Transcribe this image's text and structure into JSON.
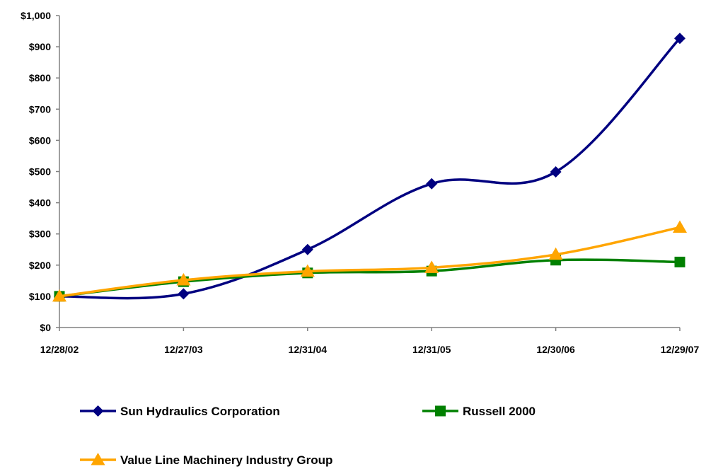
{
  "chart_data": {
    "type": "line",
    "title": "",
    "xlabel": "",
    "ylabel": "",
    "categories": [
      "12/28/02",
      "12/27/03",
      "12/31/04",
      "12/31/05",
      "12/30/06",
      "12/29/07"
    ],
    "ylim": [
      0,
      1000
    ],
    "yticks": [
      0,
      100,
      200,
      300,
      400,
      500,
      600,
      700,
      800,
      900,
      1000
    ],
    "ytick_labels": [
      "$0",
      "$100",
      "$200",
      "$300",
      "$400",
      "$500",
      "$600",
      "$700",
      "$800",
      "$900",
      "$1,000"
    ],
    "grid": false,
    "legend_position": "bottom",
    "series": [
      {
        "name": "Sun Hydraulics Corporation",
        "values": [
          100,
          108,
          250,
          461,
          499,
          927
        ],
        "color": "#000080",
        "marker": "diamond",
        "smooth": true
      },
      {
        "name": "Russell 2000",
        "values": [
          100,
          147,
          175,
          181,
          216,
          210
        ],
        "color": "#008000",
        "marker": "square",
        "smooth": true
      },
      {
        "name": "Value Line Machinery Industry Group",
        "values": [
          100,
          152,
          180,
          192,
          234,
          321
        ],
        "color": "#FFA500",
        "marker": "triangle",
        "smooth": true
      }
    ]
  }
}
